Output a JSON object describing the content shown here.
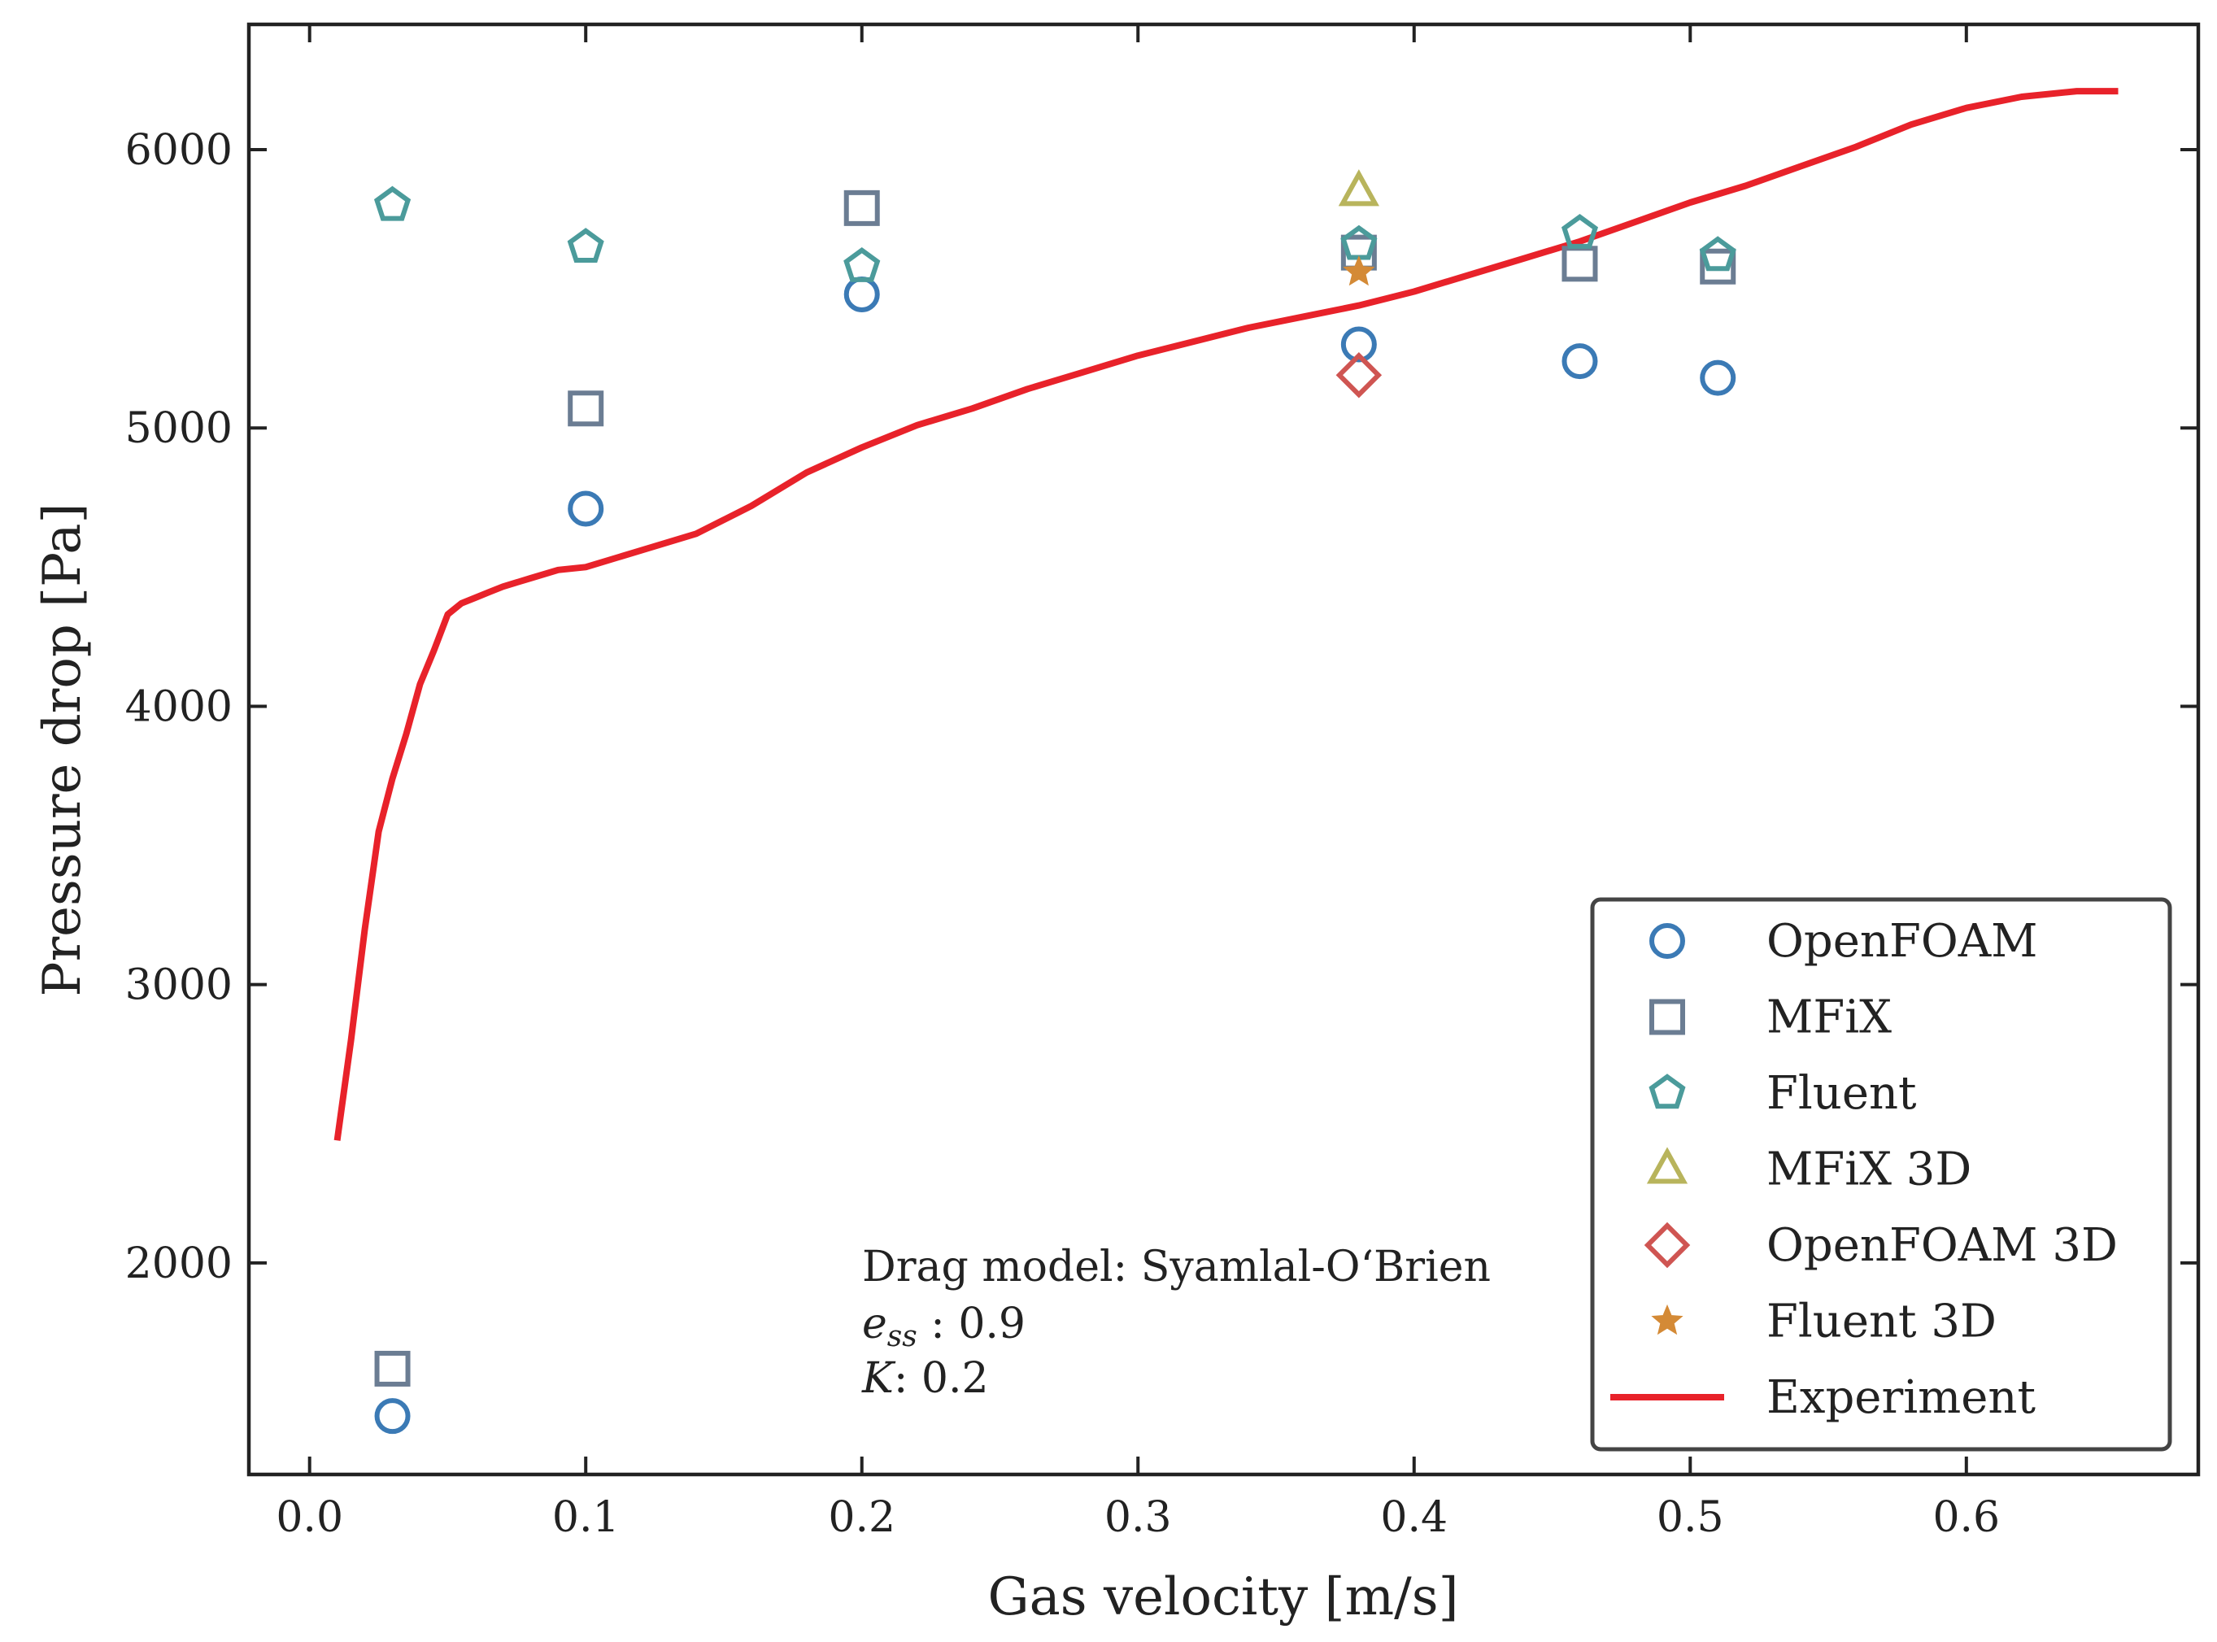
{
  "chart_data": {
    "type": "scatter",
    "xlabel": "Gas velocity [m/s]",
    "ylabel": "Pressure drop [Pa]",
    "xlim": [
      -0.022,
      0.684
    ],
    "ylim": [
      1240,
      6450
    ],
    "xticks": [
      "0.0",
      "0.1",
      "0.2",
      "0.3",
      "0.4",
      "0.5",
      "0.6"
    ],
    "xtick_values": [
      0.0,
      0.1,
      0.2,
      0.3,
      0.4,
      0.5,
      0.6
    ],
    "yticks": [
      "2000",
      "3000",
      "4000",
      "5000",
      "6000"
    ],
    "ytick_values": [
      2000,
      3000,
      4000,
      5000,
      6000
    ],
    "grid": false,
    "legend_position": "bottom-right",
    "annotation": {
      "line1": "Drag model: Syamlal-O‘Brien",
      "line2_symbol": "e",
      "line2_sub": "ss",
      "line2_rest": " : 0.9",
      "line3_symbol": "K",
      "line3_rest": ": 0.2"
    },
    "series": [
      {
        "name": "OpenFOAM",
        "marker": "circle",
        "color": "#3b7ab5",
        "x": [
          0.03,
          0.1,
          0.2,
          0.38,
          0.46,
          0.51
        ],
        "y": [
          1450,
          4710,
          5480,
          5300,
          5240,
          5180
        ]
      },
      {
        "name": "MFiX",
        "marker": "square",
        "color": "#6b7d93",
        "x": [
          0.03,
          0.1,
          0.2,
          0.38,
          0.46,
          0.51
        ],
        "y": [
          1620,
          5070,
          5790,
          5630,
          5590,
          5580
        ]
      },
      {
        "name": "Fluent",
        "marker": "pentagon",
        "color": "#4b9b9b",
        "x": [
          0.03,
          0.1,
          0.2,
          0.38,
          0.46,
          0.51
        ],
        "y": [
          5800,
          5650,
          5580,
          5660,
          5700,
          5620
        ]
      },
      {
        "name": "MFiX 3D",
        "marker": "triangle",
        "color": "#b8b45c",
        "x": [
          0.38
        ],
        "y": [
          5850
        ]
      },
      {
        "name": "OpenFOAM 3D",
        "marker": "diamond",
        "color": "#cf5552",
        "x": [
          0.38
        ],
        "y": [
          5190
        ]
      },
      {
        "name": "Fluent 3D",
        "marker": "star",
        "color": "#d48a36",
        "x": [
          0.38
        ],
        "y": [
          5560
        ]
      },
      {
        "name": "Experiment",
        "marker": "line",
        "color": "#e8222a",
        "x": [
          0.01,
          0.015,
          0.02,
          0.025,
          0.03,
          0.035,
          0.04,
          0.045,
          0.05,
          0.055,
          0.06,
          0.065,
          0.07,
          0.08,
          0.09,
          0.1,
          0.12,
          0.14,
          0.16,
          0.18,
          0.2,
          0.22,
          0.24,
          0.26,
          0.28,
          0.3,
          0.32,
          0.34,
          0.36,
          0.38,
          0.4,
          0.42,
          0.44,
          0.46,
          0.48,
          0.5,
          0.52,
          0.54,
          0.56,
          0.58,
          0.6,
          0.62,
          0.64,
          0.655
        ],
        "y": [
          2440,
          2800,
          3200,
          3550,
          3740,
          3900,
          4080,
          4200,
          4330,
          4370,
          4390,
          4410,
          4430,
          4460,
          4490,
          4500,
          4560,
          4620,
          4720,
          4840,
          4930,
          5010,
          5070,
          5140,
          5200,
          5260,
          5310,
          5360,
          5400,
          5440,
          5490,
          5550,
          5610,
          5670,
          5740,
          5810,
          5870,
          5940,
          6010,
          6090,
          6150,
          6190,
          6210,
          6210
        ]
      }
    ]
  }
}
